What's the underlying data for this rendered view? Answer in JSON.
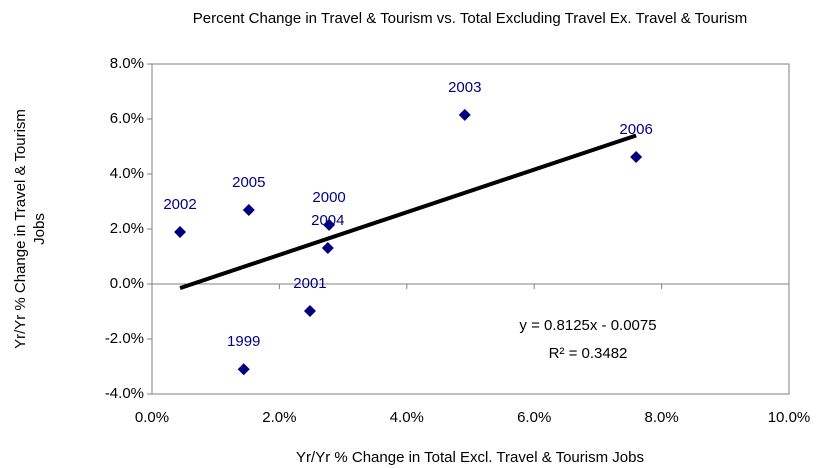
{
  "chart_data": {
    "type": "scatter",
    "title": "Percent Change in Travel & Tourism vs. Total Excluding Travel Ex. Travel & Tourism",
    "x_label": "Yr/Yr % Change in Total Excl. Travel & Tourism Jobs",
    "y_label": "Yr/Yr % Change in Travel & Tourism Jobs",
    "series": [
      {
        "name": null,
        "color": "#000080",
        "point_labels": [
          "1999",
          "2000",
          "2001",
          "2002",
          "2003",
          "2004",
          "2005",
          "2006"
        ],
        "x": [
          1.44,
          2.78,
          2.48,
          0.44,
          4.91,
          2.76,
          1.52,
          7.6
        ],
        "values": [
          -3.1,
          2.15,
          -0.98,
          1.89,
          6.15,
          1.31,
          2.69,
          4.62
        ]
      }
    ],
    "trendline": {
      "color": "#000000",
      "x": [
        0.44,
        7.6
      ],
      "values": [
        -0.15,
        5.4
      ]
    },
    "annotations": [
      "y = 0.8125x - 0.0075",
      "R² = 0.3482"
    ],
    "xlim": [
      0,
      10
    ],
    "xticks": [
      {
        "value": 0,
        "label": "0.0%"
      },
      {
        "value": 2,
        "label": "2.0%"
      },
      {
        "value": 4,
        "label": "4.0%"
      },
      {
        "value": 6,
        "label": "6.0%"
      },
      {
        "value": 8,
        "label": "8.0%"
      },
      {
        "value": 10,
        "label": "10.0%"
      }
    ],
    "ylim": [
      -4,
      8
    ],
    "yticks": [
      {
        "value": -4,
        "label": "-4.0%"
      },
      {
        "value": -2,
        "label": "-2.0%"
      },
      {
        "value": 0,
        "label": "0.0%"
      },
      {
        "value": 2,
        "label": "2.0%"
      },
      {
        "value": 4,
        "label": "4.0%"
      },
      {
        "value": 6,
        "label": "6.0%"
      },
      {
        "value": 8,
        "label": "8.0%"
      }
    ],
    "grid": false
  }
}
